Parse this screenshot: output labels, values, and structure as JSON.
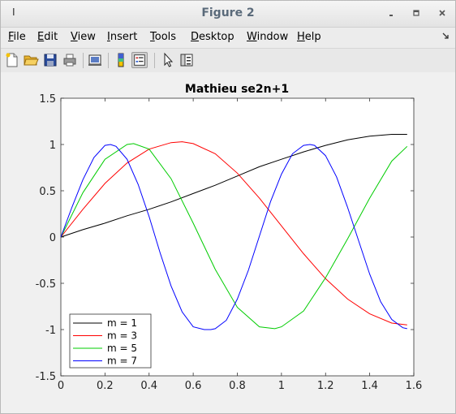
{
  "window": {
    "title": "Figure 2"
  },
  "menubar": {
    "items": [
      {
        "prefix": "",
        "u": "F",
        "suffix": "ile"
      },
      {
        "prefix": "",
        "u": "E",
        "suffix": "dit"
      },
      {
        "prefix": "",
        "u": "V",
        "suffix": "iew"
      },
      {
        "prefix": "",
        "u": "I",
        "suffix": "nsert"
      },
      {
        "prefix": "",
        "u": "T",
        "suffix": "ools"
      },
      {
        "prefix": "",
        "u": "D",
        "suffix": "esktop"
      },
      {
        "prefix": "",
        "u": "W",
        "suffix": "indow"
      },
      {
        "prefix": "",
        "u": "H",
        "suffix": "elp"
      }
    ]
  },
  "toolbar": {
    "icons": [
      "new-file-icon",
      "open-folder-icon",
      "save-icon",
      "print-icon",
      "link-plot-icon",
      "colorbar-icon",
      "legend-icon",
      "pointer-icon",
      "property-editor-icon"
    ]
  },
  "chart_data": {
    "type": "line",
    "title": "Mathieu se2n+1",
    "xlabel": "",
    "ylabel": "",
    "xlim": [
      0,
      1.6
    ],
    "ylim": [
      -1.5,
      1.5
    ],
    "xticks": [
      0,
      0.2,
      0.4,
      0.6,
      0.8,
      1,
      1.2,
      1.4,
      1.6
    ],
    "yticks": [
      -1.5,
      -1,
      -0.5,
      0,
      0.5,
      1,
      1.5
    ],
    "xtick_labels": [
      "0",
      "0.2",
      "0.4",
      "0.6",
      "0.8",
      "1",
      "1.2",
      "1.4",
      "1.6"
    ],
    "ytick_labels": [
      "-1.5",
      "-1",
      "-0.5",
      "0",
      "0.5",
      "1",
      "1.5"
    ],
    "grid": false,
    "legend_position": "bottom-left",
    "series": [
      {
        "name": "m = 1",
        "color": "#000000",
        "x": [
          0,
          0.1,
          0.2,
          0.3,
          0.4,
          0.5,
          0.6,
          0.7,
          0.8,
          0.9,
          1.0,
          1.1,
          1.2,
          1.3,
          1.4,
          1.5,
          1.57
        ],
        "y": [
          0,
          0.08,
          0.15,
          0.23,
          0.3,
          0.38,
          0.47,
          0.56,
          0.66,
          0.76,
          0.84,
          0.92,
          0.99,
          1.05,
          1.09,
          1.11,
          1.11
        ]
      },
      {
        "name": "m = 3",
        "color": "#ff0000",
        "x": [
          0,
          0.1,
          0.2,
          0.3,
          0.4,
          0.5,
          0.55,
          0.6,
          0.7,
          0.8,
          0.9,
          1.0,
          1.1,
          1.2,
          1.3,
          1.4,
          1.5,
          1.57
        ],
        "y": [
          0,
          0.3,
          0.58,
          0.8,
          0.95,
          1.02,
          1.03,
          1.01,
          0.9,
          0.69,
          0.42,
          0.12,
          -0.18,
          -0.45,
          -0.67,
          -0.83,
          -0.93,
          -0.95
        ]
      },
      {
        "name": "m = 5",
        "color": "#00cc00",
        "x": [
          0,
          0.1,
          0.2,
          0.3,
          0.33,
          0.4,
          0.5,
          0.6,
          0.7,
          0.8,
          0.9,
          0.97,
          1.0,
          1.1,
          1.2,
          1.3,
          1.4,
          1.5,
          1.57
        ],
        "y": [
          0,
          0.48,
          0.84,
          1.0,
          1.01,
          0.95,
          0.63,
          0.15,
          -0.35,
          -0.76,
          -0.97,
          -0.99,
          -0.97,
          -0.8,
          -0.44,
          -0.02,
          0.42,
          0.82,
          0.98
        ]
      },
      {
        "name": "m = 7",
        "color": "#0000ff",
        "x": [
          0,
          0.05,
          0.1,
          0.15,
          0.2,
          0.225,
          0.25,
          0.3,
          0.35,
          0.4,
          0.45,
          0.5,
          0.55,
          0.6,
          0.65,
          0.68,
          0.7,
          0.75,
          0.8,
          0.85,
          0.9,
          0.95,
          1.0,
          1.05,
          1.1,
          1.13,
          1.15,
          1.2,
          1.25,
          1.3,
          1.35,
          1.4,
          1.45,
          1.5,
          1.55,
          1.57
        ],
        "y": [
          0,
          0.32,
          0.62,
          0.86,
          0.99,
          1.0,
          0.98,
          0.84,
          0.57,
          0.22,
          -0.17,
          -0.53,
          -0.81,
          -0.97,
          -1.0,
          -1.0,
          -0.99,
          -0.9,
          -0.67,
          -0.36,
          0.01,
          0.38,
          0.68,
          0.9,
          0.99,
          1.0,
          0.99,
          0.88,
          0.65,
          0.32,
          -0.04,
          -0.4,
          -0.7,
          -0.89,
          -0.98,
          -0.99
        ]
      }
    ]
  }
}
